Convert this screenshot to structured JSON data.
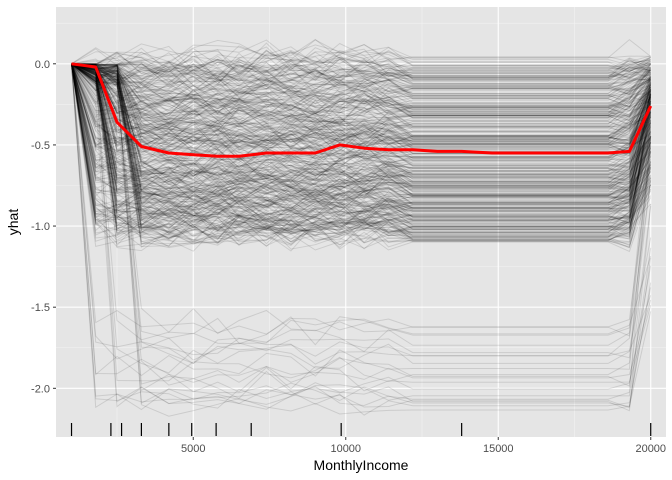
{
  "chart_data": {
    "type": "line",
    "title": "",
    "xlabel": "MonthlyIncome",
    "ylabel": "yhat",
    "xlim": [
      500,
      20500
    ],
    "ylim": [
      -2.3,
      0.35
    ],
    "xticks": [
      5000,
      10000,
      15000,
      20000
    ],
    "xtick_labels": [
      "5000",
      "10000",
      "15000",
      "20000"
    ],
    "yticks": [
      0.0,
      -0.5,
      -1.0,
      -1.5,
      -2.0
    ],
    "ytick_labels": [
      "0.0",
      "-0.5",
      "-1.0",
      "-1.5",
      "-2.0"
    ],
    "grid": true,
    "x": [
      1009,
      1800,
      2500,
      3300,
      4200,
      5000,
      5800,
      6500,
      7400,
      8200,
      9000,
      9800,
      10600,
      11400,
      12200,
      13000,
      13800,
      14800,
      15800,
      16800,
      17800,
      18600,
      19300,
      19999
    ],
    "series": [
      {
        "color": "#ff0000",
        "values": [
          0.0,
          -0.02,
          -0.36,
          -0.51,
          -0.55,
          -0.56,
          -0.57,
          -0.57,
          -0.55,
          -0.55,
          -0.55,
          -0.5,
          -0.52,
          -0.53,
          -0.53,
          -0.54,
          -0.54,
          -0.55,
          -0.55,
          -0.55,
          -0.55,
          -0.55,
          -0.54,
          -0.26
        ]
      }
    ],
    "ice_curves_description_count": 1470,
    "rug_x": [
      1009,
      2300,
      2650,
      3300,
      4200,
      4950,
      5750,
      6900,
      9850,
      13800,
      19999
    ]
  },
  "colors": {
    "panel_bg": "#e5e5e5",
    "grid_major": "#ffffff",
    "ice_line": "#000000",
    "pd_line": "#ff0000"
  }
}
